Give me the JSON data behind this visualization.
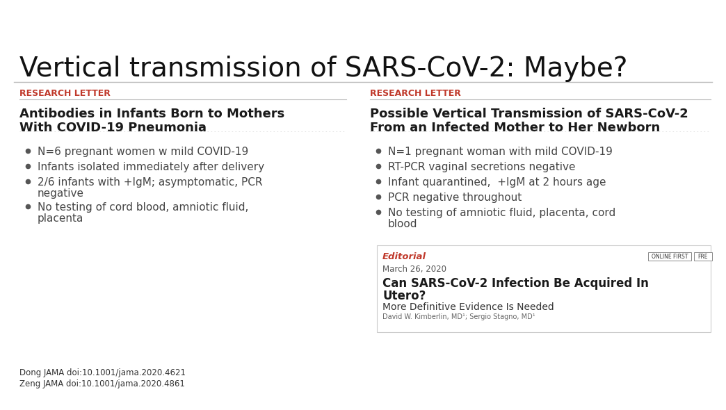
{
  "title": "Vertical transmission of SARS-CoV-2: Maybe?",
  "title_fontsize": 28,
  "title_color": "#111111",
  "bg_color": "#ffffff",
  "left_panel": {
    "label": "RESEARCH LETTER",
    "label_color": "#c0392b",
    "heading_line1": "Antibodies in Infants Born to Mothers",
    "heading_line2": "With COVID-19 Pneumonia",
    "heading_color": "#1a1a1a",
    "bullets": [
      "N=6 pregnant women w mild COVID-19",
      "Infants isolated immediately after delivery",
      "2/6 infants with +IgM; asymptomatic, PCR\nnegative",
      "No testing of cord blood, amniotic fluid,\nplacenta"
    ]
  },
  "right_panel": {
    "label": "RESEARCH LETTER",
    "label_color": "#c0392b",
    "heading_line1": "Possible Vertical Transmission of SARS-CoV-2",
    "heading_line2": "From an Infected Mother to Her Newborn",
    "heading_color": "#1a1a1a",
    "bullets": [
      "N=1 pregnant woman with mild COVID-19",
      "RT-PCR vaginal secretions negative",
      "Infant quarantined,  +IgM at 2 hours age",
      "PCR negative throughout",
      "No testing of amniotic fluid, placenta, cord\nblood"
    ],
    "editorial_label": "Editorial",
    "editorial_label_color": "#c0392b",
    "editorial_date": "March 26, 2020",
    "editorial_badge1": "ONLINE FIRST",
    "editorial_badge2": "FRE",
    "editorial_title_line1": "Can SARS-CoV-2 Infection Be Acquired In",
    "editorial_title_line2": "Utero?",
    "editorial_subtitle": "More Definitive Evidence Is Needed",
    "editorial_authors": "David W. Kimberlin, MD¹; Sergio Stagno, MD¹"
  },
  "footnotes": [
    "Dong JAMA doi:10.1001/jama.2020.4621",
    "Zeng JAMA doi:10.1001/jama.2020.4861"
  ],
  "footnote_color": "#333333",
  "bullet_color": "#444444",
  "separator_color": "#bbbbbb"
}
